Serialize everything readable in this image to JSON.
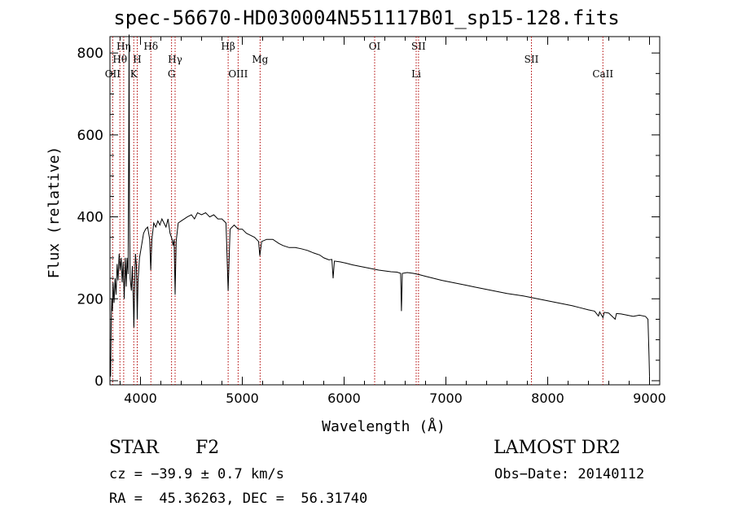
{
  "chart_data": {
    "type": "line",
    "title": "spec-56670-HD030004N551117B01_sp15-128.fits",
    "xlabel": "Wavelength (Å)",
    "ylabel": "Flux (relative)",
    "xlim": [
      3700,
      9100
    ],
    "ylim": [
      -10,
      840
    ],
    "x_ticks": [
      4000,
      5000,
      6000,
      7000,
      8000,
      9000
    ],
    "y_ticks": [
      0,
      200,
      400,
      600,
      800
    ],
    "line_color": "#000000",
    "marker_color": "#b00000",
    "series": [
      {
        "values": [
          [
            3700,
            60
          ],
          [
            3706,
            10
          ],
          [
            3712,
            140
          ],
          [
            3718,
            200
          ],
          [
            3724,
            170
          ],
          [
            3730,
            240
          ],
          [
            3740,
            190
          ],
          [
            3750,
            250
          ],
          [
            3760,
            210
          ],
          [
            3770,
            285
          ],
          [
            3780,
            245
          ],
          [
            3790,
            310
          ],
          [
            3800,
            270
          ],
          [
            3810,
            300
          ],
          [
            3820,
            240
          ],
          [
            3830,
            290
          ],
          [
            3840,
            200
          ],
          [
            3850,
            300
          ],
          [
            3860,
            230
          ],
          [
            3868,
            300
          ],
          [
            3878,
            260
          ],
          [
            3884,
            560
          ],
          [
            3888,
            845
          ],
          [
            3892,
            420
          ],
          [
            3898,
            250
          ],
          [
            3910,
            220
          ],
          [
            3920,
            280
          ],
          [
            3930,
            190
          ],
          [
            3935,
            130
          ],
          [
            3940,
            200
          ],
          [
            3950,
            310
          ],
          [
            3960,
            280
          ],
          [
            3968,
            150
          ],
          [
            3975,
            240
          ],
          [
            3990,
            300
          ],
          [
            4010,
            330
          ],
          [
            4030,
            360
          ],
          [
            4050,
            370
          ],
          [
            4070,
            375
          ],
          [
            4090,
            345
          ],
          [
            4101,
            270
          ],
          [
            4112,
            345
          ],
          [
            4130,
            385
          ],
          [
            4150,
            375
          ],
          [
            4170,
            390
          ],
          [
            4190,
            380
          ],
          [
            4210,
            395
          ],
          [
            4230,
            385
          ],
          [
            4250,
            375
          ],
          [
            4270,
            395
          ],
          [
            4290,
            360
          ],
          [
            4310,
            345
          ],
          [
            4320,
            330
          ],
          [
            4330,
            345
          ],
          [
            4340,
            210
          ],
          [
            4350,
            340
          ],
          [
            4370,
            385
          ],
          [
            4400,
            390
          ],
          [
            4430,
            395
          ],
          [
            4460,
            400
          ],
          [
            4500,
            405
          ],
          [
            4530,
            395
          ],
          [
            4560,
            410
          ],
          [
            4600,
            405
          ],
          [
            4640,
            410
          ],
          [
            4680,
            400
          ],
          [
            4720,
            405
          ],
          [
            4760,
            395
          ],
          [
            4800,
            395
          ],
          [
            4840,
            385
          ],
          [
            4861,
            220
          ],
          [
            4880,
            370
          ],
          [
            4920,
            380
          ],
          [
            4960,
            370
          ],
          [
            5000,
            370
          ],
          [
            5040,
            360
          ],
          [
            5080,
            355
          ],
          [
            5120,
            350
          ],
          [
            5160,
            340
          ],
          [
            5172,
            305
          ],
          [
            5190,
            340
          ],
          [
            5240,
            345
          ],
          [
            5300,
            345
          ],
          [
            5360,
            335
          ],
          [
            5400,
            330
          ],
          [
            5460,
            325
          ],
          [
            5520,
            325
          ],
          [
            5580,
            322
          ],
          [
            5640,
            318
          ],
          [
            5700,
            312
          ],
          [
            5760,
            307
          ],
          [
            5800,
            300
          ],
          [
            5850,
            295
          ],
          [
            5880,
            296
          ],
          [
            5892,
            250
          ],
          [
            5905,
            292
          ],
          [
            5960,
            290
          ],
          [
            6020,
            287
          ],
          [
            6080,
            283
          ],
          [
            6140,
            280
          ],
          [
            6200,
            277
          ],
          [
            6260,
            274
          ],
          [
            6300,
            272
          ],
          [
            6340,
            270
          ],
          [
            6400,
            268
          ],
          [
            6460,
            266
          ],
          [
            6520,
            265
          ],
          [
            6555,
            262
          ],
          [
            6563,
            170
          ],
          [
            6572,
            262
          ],
          [
            6620,
            264
          ],
          [
            6680,
            262
          ],
          [
            6740,
            259
          ],
          [
            6800,
            255
          ],
          [
            6880,
            250
          ],
          [
            6960,
            245
          ],
          [
            7040,
            241
          ],
          [
            7120,
            237
          ],
          [
            7200,
            233
          ],
          [
            7280,
            229
          ],
          [
            7360,
            225
          ],
          [
            7440,
            221
          ],
          [
            7520,
            217
          ],
          [
            7600,
            213
          ],
          [
            7680,
            210
          ],
          [
            7760,
            207
          ],
          [
            7840,
            203
          ],
          [
            7920,
            199
          ],
          [
            8000,
            195
          ],
          [
            8080,
            191
          ],
          [
            8160,
            187
          ],
          [
            8240,
            183
          ],
          [
            8320,
            178
          ],
          [
            8400,
            173
          ],
          [
            8460,
            170
          ],
          [
            8498,
            158
          ],
          [
            8510,
            168
          ],
          [
            8542,
            154
          ],
          [
            8555,
            167
          ],
          [
            8600,
            165
          ],
          [
            8662,
            150
          ],
          [
            8675,
            164
          ],
          [
            8720,
            163
          ],
          [
            8780,
            160
          ],
          [
            8840,
            157
          ],
          [
            8900,
            160
          ],
          [
            8960,
            157
          ],
          [
            8985,
            150
          ],
          [
            8995,
            60
          ],
          [
            9000,
            10
          ]
        ]
      }
    ],
    "lines": [
      {
        "label": "OII",
        "wavelength": 3727,
        "row": 3
      },
      {
        "label": "Hθ",
        "wavelength": 3798,
        "row": 2
      },
      {
        "label": "Hη",
        "wavelength": 3835,
        "row": 1
      },
      {
        "label": "H",
        "wavelength": 3968,
        "row": 2
      },
      {
        "label": "K",
        "wavelength": 3934,
        "row": 3
      },
      {
        "label": "Hδ",
        "wavelength": 4102,
        "row": 1
      },
      {
        "label": "Hγ",
        "wavelength": 4340,
        "row": 2
      },
      {
        "label": "G",
        "wavelength": 4305,
        "row": 3
      },
      {
        "label": "Hβ",
        "wavelength": 4861,
        "row": 1
      },
      {
        "label": "OIII",
        "wavelength": 4959,
        "row": 3
      },
      {
        "label": "Mg",
        "wavelength": 5175,
        "row": 2
      },
      {
        "label": "OI",
        "wavelength": 6300,
        "row": 1
      },
      {
        "label": "SII",
        "wavelength": 6731,
        "row": 1
      },
      {
        "label": "Li",
        "wavelength": 6708,
        "row": 3
      },
      {
        "label": "SII",
        "wavelength": 7840,
        "row": 2
      },
      {
        "label": "CaII",
        "wavelength": 8542,
        "row": 3
      }
    ]
  },
  "info": {
    "class": "STAR",
    "subclass": "F2",
    "survey": "LAMOST DR2",
    "cz": "cz = −39.9 ± 0.7 km/s",
    "obs_date": "Obs−Date: 20140112",
    "coords": "RA =  45.36263, DEC =  56.31740"
  }
}
